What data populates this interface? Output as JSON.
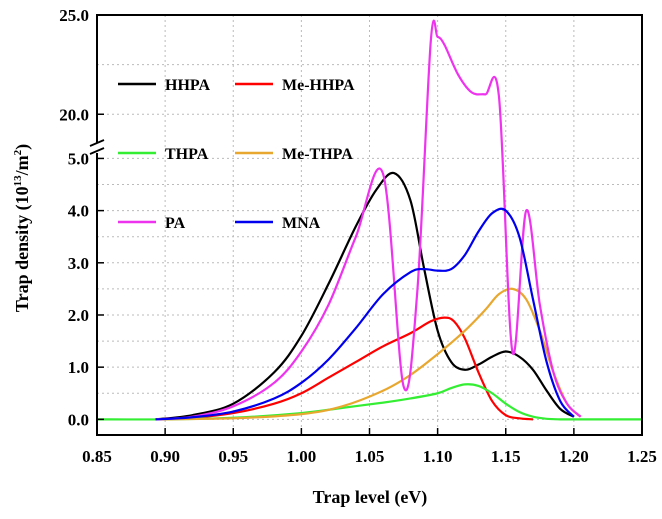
{
  "chart_data": {
    "type": "line",
    "title": "",
    "xlabel": "Trap level (eV)",
    "ylabel_main": "Trap density (10",
    "ylabel_exp": "13",
    "ylabel_tail": "/m",
    "ylabel_exp2": "2",
    "ylabel_close": ")",
    "xlim": [
      0.85,
      1.25
    ],
    "ylim_lower": [
      -0.3,
      5.2
    ],
    "ylim_upper": [
      18.3,
      25.0
    ],
    "broken_y_axis": true,
    "grid": true,
    "legend_position": "upper-left, inside plot",
    "x_ticks": [
      "0.85",
      "0.90",
      "0.95",
      "1.00",
      "1.05",
      "1.10",
      "1.15",
      "1.20",
      "1.25"
    ],
    "y_ticks_lower": [
      "0.0",
      "1.0",
      "2.0",
      "3.0",
      "4.0",
      "5.0"
    ],
    "y_ticks_upper": [
      "20.0",
      "25.0"
    ],
    "series": [
      {
        "name": "HHPA",
        "color": "#000000",
        "x": [
          0.893,
          0.92,
          0.95,
          0.98,
          1.0,
          1.02,
          1.04,
          1.055,
          1.068,
          1.08,
          1.09,
          1.1,
          1.11,
          1.12,
          1.13,
          1.14,
          1.15,
          1.16,
          1.17,
          1.18,
          1.19,
          1.2
        ],
        "y": [
          0.0,
          0.08,
          0.3,
          0.9,
          1.6,
          2.6,
          3.7,
          4.4,
          4.72,
          4.2,
          2.9,
          1.7,
          1.1,
          0.95,
          1.05,
          1.2,
          1.3,
          1.2,
          0.95,
          0.55,
          0.2,
          0.05
        ]
      },
      {
        "name": "Me-HHPA",
        "color": "#ff0000",
        "x": [
          0.893,
          0.92,
          0.95,
          0.98,
          1.0,
          1.02,
          1.04,
          1.06,
          1.08,
          1.095,
          1.105,
          1.112,
          1.12,
          1.13,
          1.14,
          1.15,
          1.16,
          1.17
        ],
        "y": [
          0.0,
          0.03,
          0.12,
          0.3,
          0.5,
          0.8,
          1.1,
          1.4,
          1.65,
          1.88,
          1.95,
          1.88,
          1.55,
          0.9,
          0.35,
          0.08,
          0.02,
          0.0
        ]
      },
      {
        "name": "THPA",
        "color": "#33ee33",
        "x": [
          0.85,
          0.9,
          0.95,
          1.0,
          1.03,
          1.06,
          1.08,
          1.1,
          1.11,
          1.12,
          1.13,
          1.14,
          1.15,
          1.16,
          1.17,
          1.18,
          1.19,
          1.2,
          1.25
        ],
        "y": [
          0.0,
          0.0,
          0.03,
          0.12,
          0.22,
          0.32,
          0.4,
          0.5,
          0.6,
          0.67,
          0.64,
          0.5,
          0.3,
          0.14,
          0.05,
          0.01,
          0.0,
          0.0,
          0.0
        ]
      },
      {
        "name": "Me-THPA",
        "color": "#e8a830",
        "x": [
          0.893,
          0.95,
          1.0,
          1.03,
          1.06,
          1.08,
          1.1,
          1.12,
          1.135,
          1.145,
          1.155,
          1.165,
          1.175,
          1.185,
          1.195,
          1.205
        ],
        "y": [
          0.0,
          0.02,
          0.1,
          0.25,
          0.55,
          0.85,
          1.25,
          1.7,
          2.1,
          2.4,
          2.5,
          2.3,
          1.7,
          0.9,
          0.3,
          0.05
        ]
      },
      {
        "name": "PA",
        "color": "#ee33ee",
        "x": [
          0.893,
          0.92,
          0.95,
          0.98,
          1.0,
          1.02,
          1.04,
          1.06,
          1.075,
          1.085,
          1.095,
          1.1,
          1.105,
          1.115,
          1.125,
          1.135,
          1.145,
          1.155,
          1.165,
          1.175,
          1.185,
          1.195,
          1.205
        ],
        "y": [
          0.0,
          0.05,
          0.25,
          0.7,
          1.3,
          2.2,
          3.5,
          4.7,
          6.3,
          11.0,
          23.7,
          23.9,
          23.5,
          22.0,
          21.1,
          21.0,
          20.9,
          8.0,
          4.0,
          2.2,
          0.9,
          0.3,
          0.05
        ]
      },
      {
        "name": "MNA",
        "color": "#0000ee",
        "x": [
          0.893,
          0.92,
          0.95,
          0.98,
          1.0,
          1.02,
          1.04,
          1.06,
          1.08,
          1.09,
          1.1,
          1.11,
          1.12,
          1.13,
          1.14,
          1.15,
          1.16,
          1.17,
          1.18,
          1.19,
          1.2
        ],
        "y": [
          0.0,
          0.04,
          0.15,
          0.4,
          0.7,
          1.15,
          1.75,
          2.4,
          2.82,
          2.88,
          2.85,
          2.88,
          3.15,
          3.6,
          3.95,
          4.0,
          3.5,
          2.3,
          1.1,
          0.35,
          0.05
        ]
      }
    ]
  }
}
